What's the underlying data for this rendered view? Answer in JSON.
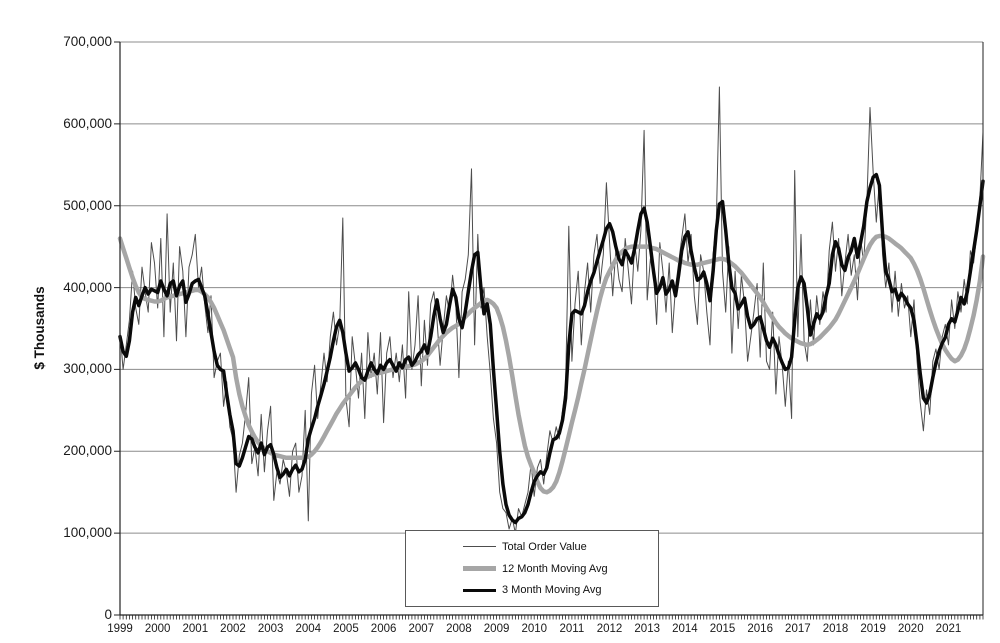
{
  "chart_data": {
    "type": "line",
    "title": "",
    "ylabel": "$ Thousands",
    "grid": true,
    "units": "US dollars, thousands",
    "x_axis": {
      "unit": "month",
      "start_year": 1999,
      "end_year": 2021,
      "tick_labels": [
        "1999",
        "2000",
        "2001",
        "2002",
        "2003",
        "2004",
        "2005",
        "2006",
        "2007",
        "2008",
        "2009",
        "2010",
        "2011",
        "2012",
        "2013",
        "2014",
        "2015",
        "2016",
        "2017",
        "2018",
        "2019",
        "2020",
        "2021"
      ]
    },
    "y_axis": {
      "min": 0,
      "max": 700000,
      "tick_interval": 100000,
      "tick_values_thousands": [
        0,
        100,
        200,
        300,
        400,
        500,
        600,
        700
      ],
      "tick_labels": [
        "0",
        "100,000",
        "200,000",
        "300,000",
        "400,000",
        "500,000",
        "600,000",
        "700,000"
      ]
    },
    "legend": {
      "position": "bottom-center",
      "entries": [
        "Total Order Value",
        "12 Month Moving Avg",
        "3 Month Moving Avg"
      ]
    },
    "colors": {
      "total_order_value": "#4d4d4d",
      "moving_avg_12mo": "#a6a6a6",
      "moving_avg_3mo": "#0a0a0a",
      "gridline": "#8c8c8c",
      "axis": "#222222"
    },
    "series": [
      {
        "name": "Total Order Value",
        "color": "#4d4d4d",
        "stroke_width": 1,
        "values_thousands": [
          345,
          300,
          330,
          360,
          420,
          375,
          355,
          425,
          395,
          370,
          455,
          430,
          375,
          460,
          340,
          490,
          370,
          430,
          335,
          450,
          420,
          340,
          425,
          440,
          465,
          400,
          425,
          380,
          345,
          390,
          290,
          310,
          320,
          255,
          285,
          230,
          215,
          150,
          195,
          210,
          245,
          290,
          185,
          205,
          170,
          245,
          175,
          225,
          255,
          140,
          175,
          160,
          190,
          175,
          145,
          200,
          210,
          150,
          170,
          250,
          115,
          270,
          305,
          240,
          280,
          320,
          285,
          340,
          370,
          330,
          355,
          485,
          265,
          230,
          340,
          305,
          265,
          320,
          240,
          345,
          290,
          320,
          270,
          345,
          235,
          320,
          340,
          290,
          320,
          285,
          330,
          265,
          395,
          300,
          330,
          390,
          280,
          360,
          305,
          380,
          395,
          360,
          305,
          350,
          390,
          370,
          415,
          380,
          290,
          395,
          410,
          440,
          545,
          330,
          465,
          375,
          400,
          340,
          295,
          240,
          210,
          150,
          130,
          125,
          105,
          118,
          100,
          130,
          120,
          135,
          150,
          185,
          145,
          180,
          190,
          160,
          195,
          225,
          210,
          230,
          215,
          250,
          280,
          475,
          310,
          380,
          420,
          330,
          395,
          430,
          370,
          440,
          465,
          405,
          440,
          528,
          455,
          390,
          445,
          410,
          395,
          460,
          420,
          380,
          455,
          420,
          470,
          592,
          385,
          435,
          420,
          355,
          455,
          420,
          370,
          430,
          345,
          400,
          430,
          460,
          490,
          430,
          465,
          390,
          355,
          440,
          420,
          370,
          330,
          440,
          480,
          645,
          420,
          370,
          450,
          320,
          420,
          350,
          415,
          380,
          310,
          340,
          370,
          405,
          315,
          430,
          310,
          300,
          370,
          270,
          340,
          305,
          255,
          310,
          240,
          543,
          340,
          465,
          335,
          310,
          385,
          330,
          390,
          355,
          395,
          370,
          445,
          480,
          420,
          460,
          390,
          430,
          465,
          415,
          440,
          385,
          460,
          430,
          505,
          620,
          540,
          480,
          530,
          440,
          400,
          430,
          370,
          420,
          365,
          405,
          375,
          390,
          340,
          385,
          310,
          260,
          225,
          275,
          245,
          310,
          325,
          300,
          340,
          355,
          330,
          385,
          350,
          395,
          370,
          410,
          380,
          445,
          430,
          465,
          510,
          590
        ]
      },
      {
        "name": "12 Month Moving Avg",
        "color": "#a6a6a6",
        "stroke_width": 4.5,
        "values_thousands": [
          460,
          448,
          436,
          424,
          412,
          402,
          394,
          388,
          386,
          385,
          384,
          383,
          383,
          384,
          386,
          388,
          389,
          390,
          391,
          392,
          393,
          394,
          395,
          396,
          397,
          397,
          395,
          392,
          388,
          382,
          375,
          366,
          357,
          348,
          337,
          326,
          315,
          290,
          270,
          255,
          243,
          232,
          224,
          217,
          211,
          207,
          203,
          200,
          198,
          196,
          195,
          194,
          193,
          192,
          192,
          192,
          192,
          192,
          192,
          193,
          193,
          196,
          200,
          205,
          211,
          218,
          225,
          232,
          239,
          246,
          252,
          258,
          263,
          268,
          273,
          278,
          282,
          286,
          289,
          291,
          293,
          294,
          295,
          296,
          297,
          298,
          299,
          300,
          301,
          302,
          302,
          303,
          304,
          305,
          306,
          308,
          310,
          313,
          317,
          322,
          327,
          332,
          337,
          341,
          345,
          348,
          351,
          353,
          356,
          360,
          364,
          368,
          372,
          375,
          378,
          381,
          384,
          385,
          383,
          380,
          375,
          365,
          352,
          335,
          315,
          292,
          268,
          245,
          225,
          207,
          193,
          183,
          174,
          163,
          155,
          151,
          150,
          152,
          156,
          163,
          174,
          188,
          203,
          219,
          235,
          250,
          266,
          283,
          300,
          318,
          336,
          354,
          371,
          387,
          401,
          412,
          420,
          427,
          434,
          440,
          444,
          447,
          449,
          450,
          450,
          450,
          450,
          450,
          450,
          449,
          448,
          447,
          445,
          443,
          441,
          439,
          437,
          435,
          433,
          432,
          430,
          429,
          428,
          428,
          428,
          429,
          430,
          431,
          432,
          433,
          434,
          435,
          435,
          434,
          432,
          429,
          426,
          422,
          418,
          413,
          408,
          403,
          398,
          393,
          388,
          382,
          375,
          369,
          363,
          357,
          352,
          348,
          344,
          341,
          338,
          336,
          334,
          332,
          331,
          330,
          331,
          333,
          336,
          339,
          343,
          347,
          351,
          356,
          361,
          368,
          376,
          384,
          392,
          400,
          408,
          417,
          426,
          435,
          444,
          452,
          458,
          462,
          463,
          463,
          462,
          460,
          457,
          454,
          451,
          448,
          444,
          440,
          436,
          429,
          421,
          411,
          399,
          386,
          373,
          361,
          350,
          340,
          331,
          324,
          318,
          313,
          310,
          312,
          317,
          325,
          336,
          350,
          366,
          385,
          408,
          438
        ]
      },
      {
        "name": "3 Month Moving Avg",
        "color": "#0a0a0a",
        "stroke_width": 3.5,
        "values_thousands": [
          340,
          322,
          316,
          335,
          370,
          388,
          378,
          390,
          400,
          392,
          398,
          396,
          394,
          408,
          398,
          390,
          405,
          408,
          390,
          402,
          408,
          382,
          392,
          405,
          408,
          410,
          400,
          390,
          368,
          345,
          322,
          305,
          300,
          298,
          270,
          245,
          225,
          185,
          182,
          192,
          205,
          218,
          215,
          205,
          198,
          210,
          196,
          205,
          208,
          196,
          180,
          168,
          172,
          178,
          170,
          178,
          183,
          175,
          178,
          190,
          215,
          228,
          240,
          255,
          268,
          282,
          298,
          315,
          335,
          352,
          360,
          345,
          320,
          298,
          302,
          308,
          300,
          290,
          287,
          298,
          308,
          300,
          295,
          305,
          300,
          308,
          312,
          305,
          298,
          308,
          302,
          312,
          315,
          305,
          310,
          318,
          322,
          330,
          320,
          340,
          365,
          385,
          362,
          345,
          355,
          378,
          398,
          388,
          362,
          351,
          370,
          395,
          420,
          440,
          443,
          400,
          368,
          380,
          355,
          300,
          250,
          200,
          160,
          135,
          122,
          116,
          113,
          118,
          120,
          125,
          135,
          150,
          163,
          170,
          175,
          172,
          180,
          198,
          214,
          216,
          222,
          238,
          265,
          330,
          368,
          372,
          370,
          368,
          378,
          395,
          408,
          418,
          432,
          445,
          458,
          472,
          478,
          468,
          450,
          435,
          428,
          445,
          438,
          430,
          448,
          470,
          490,
          497,
          480,
          450,
          420,
          393,
          400,
          412,
          392,
          398,
          408,
          390,
          415,
          445,
          462,
          468,
          445,
          425,
          409,
          412,
          419,
          405,
          384,
          420,
          470,
          502,
          505,
          470,
          430,
          400,
          393,
          374,
          380,
          387,
          365,
          351,
          355,
          362,
          364,
          350,
          335,
          327,
          338,
          330,
          318,
          308,
          300,
          302,
          315,
          360,
          400,
          413,
          405,
          375,
          342,
          355,
          368,
          362,
          370,
          390,
          405,
          440,
          456,
          448,
          428,
          421,
          437,
          445,
          460,
          437,
          455,
          475,
          505,
          522,
          535,
          538,
          525,
          465,
          420,
          410,
          395,
          398,
          385,
          393,
          388,
          380,
          375,
          360,
          330,
          295,
          265,
          259,
          270,
          290,
          308,
          322,
          332,
          339,
          355,
          362,
          358,
          372,
          388,
          380,
          395,
          420,
          445,
          470,
          500,
          530
        ]
      }
    ]
  }
}
